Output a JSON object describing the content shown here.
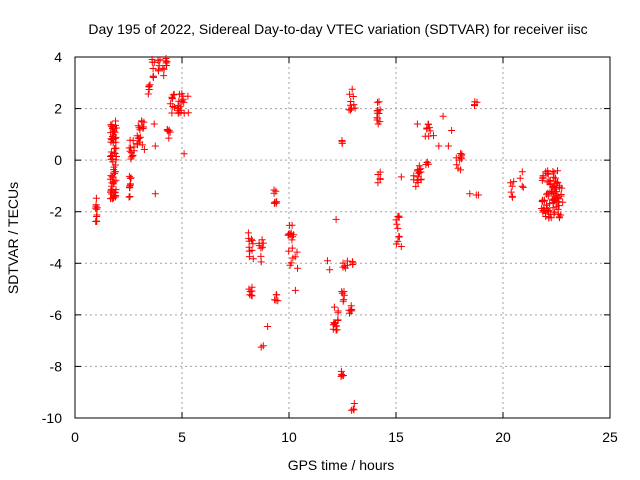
{
  "chart_data": {
    "type": "scatter",
    "title": "Day 195 of 2022, Sidereal Day-to-day VTEC variation (SDTVAR) for receiver iisc",
    "xlabel": "GPS time / hours",
    "ylabel": "SDTVAR / TECUs",
    "xlim": [
      0,
      25
    ],
    "ylim": [
      -10,
      4
    ],
    "xticks": [
      0,
      5,
      10,
      15,
      20,
      25
    ],
    "yticks": [
      -10,
      -8,
      -6,
      -4,
      -2,
      0,
      2,
      4
    ],
    "grid": true,
    "marker": "plus",
    "color": "#ff0000",
    "series": [
      {
        "name": "SDTVAR",
        "clusters": [
          {
            "x": [
              0.95,
              1.05
            ],
            "y": [
              -2.6,
              -1.3
            ],
            "n": 12
          },
          {
            "x": [
              1.65,
              1.95
            ],
            "y": [
              -1.5,
              1.6
            ],
            "n": 70
          },
          {
            "x": [
              2.5,
              2.7
            ],
            "y": [
              -1.5,
              -0.6
            ],
            "n": 10
          },
          {
            "x": [
              2.5,
              2.8
            ],
            "y": [
              0.0,
              0.8
            ],
            "n": 12
          },
          {
            "x": [
              2.9,
              3.25
            ],
            "y": [
              0.3,
              1.6
            ],
            "n": 18
          },
          {
            "x": [
              3.4,
              3.55
            ],
            "y": [
              2.5,
              3.0
            ],
            "n": 5
          },
          {
            "x": [
              3.6,
              4.3
            ],
            "y": [
              3.2,
              4.0
            ],
            "n": 20
          },
          {
            "x": [
              4.3,
              4.5
            ],
            "y": [
              0.8,
              1.2
            ],
            "n": 6
          },
          {
            "x": [
              4.4,
              5.3
            ],
            "y": [
              1.8,
              2.6
            ],
            "n": 28
          },
          {
            "x": [
              8.1,
              8.4
            ],
            "y": [
              -5.3,
              -4.9
            ],
            "n": 8
          },
          {
            "x": [
              8.1,
              8.35
            ],
            "y": [
              -3.9,
              -2.8
            ],
            "n": 12
          },
          {
            "x": [
              8.6,
              8.8
            ],
            "y": [
              -4.0,
              -2.9
            ],
            "n": 8
          },
          {
            "x": [
              9.3,
              9.45
            ],
            "y": [
              -1.7,
              -0.9
            ],
            "n": 8
          },
          {
            "x": [
              9.3,
              9.5
            ],
            "y": [
              -5.5,
              -5.1
            ],
            "n": 5
          },
          {
            "x": [
              9.9,
              10.4
            ],
            "y": [
              -4.2,
              -2.5
            ],
            "n": 18
          },
          {
            "x": [
              12.05,
              12.3
            ],
            "y": [
              -6.6,
              -5.7
            ],
            "n": 14
          },
          {
            "x": [
              12.4,
              12.6
            ],
            "y": [
              -5.6,
              -5.0
            ],
            "n": 6
          },
          {
            "x": [
              12.8,
              12.95
            ],
            "y": [
              -6.0,
              -5.6
            ],
            "n": 6
          },
          {
            "x": [
              12.5,
              13.0
            ],
            "y": [
              -4.2,
              -3.9
            ],
            "n": 8
          },
          {
            "x": [
              12.8,
              13.1
            ],
            "y": [
              1.9,
              2.9
            ],
            "n": 10
          },
          {
            "x": [
              12.35,
              12.5
            ],
            "y": [
              0.6,
              0.9
            ],
            "n": 4
          },
          {
            "x": [
              12.4,
              12.55
            ],
            "y": [
              -8.4,
              -8.0
            ],
            "n": 5
          },
          {
            "x": [
              12.9,
              13.05
            ],
            "y": [
              -9.7,
              -9.4
            ],
            "n": 4
          },
          {
            "x": [
              14.1,
              14.3
            ],
            "y": [
              1.4,
              2.3
            ],
            "n": 12
          },
          {
            "x": [
              14.15,
              14.3
            ],
            "y": [
              -0.9,
              -0.4
            ],
            "n": 5
          },
          {
            "x": [
              15.0,
              15.2
            ],
            "y": [
              -3.4,
              -2.1
            ],
            "n": 10
          },
          {
            "x": [
              15.8,
              16.2
            ],
            "y": [
              -1.1,
              -0.1
            ],
            "n": 16
          },
          {
            "x": [
              16.3,
              16.6
            ],
            "y": [
              0.8,
              1.4
            ],
            "n": 8
          },
          {
            "x": [
              16.35,
              16.55
            ],
            "y": [
              -0.3,
              0.0
            ],
            "n": 4
          },
          {
            "x": [
              17.8,
              18.1
            ],
            "y": [
              -0.6,
              0.3
            ],
            "n": 10
          },
          {
            "x": [
              18.6,
              18.8
            ],
            "y": [
              2.1,
              2.3
            ],
            "n": 5
          },
          {
            "x": [
              20.3,
              20.5
            ],
            "y": [
              -1.5,
              -0.8
            ],
            "n": 6
          },
          {
            "x": [
              20.8,
              20.95
            ],
            "y": [
              -1.2,
              -0.4
            ],
            "n": 4
          },
          {
            "x": [
              21.8,
              22.8
            ],
            "y": [
              -2.3,
              -0.4
            ],
            "n": 90
          }
        ],
        "points": [
          [
            3.75,
            0.55
          ],
          [
            3.7,
            1.4
          ],
          [
            3.75,
            -1.3
          ],
          [
            5.1,
            0.25
          ],
          [
            8.8,
            -7.2
          ],
          [
            8.7,
            -7.25
          ],
          [
            9.0,
            -6.45
          ],
          [
            10.3,
            -5.05
          ],
          [
            11.8,
            -3.9
          ],
          [
            11.9,
            -4.25
          ],
          [
            12.2,
            -2.3
          ],
          [
            12.6,
            -4.1
          ],
          [
            15.25,
            -0.65
          ],
          [
            15.25,
            -3.35
          ],
          [
            16.0,
            1.4
          ],
          [
            16.75,
            0.95
          ],
          [
            17.0,
            0.55
          ],
          [
            17.2,
            1.7
          ],
          [
            17.45,
            0.55
          ],
          [
            17.6,
            1.15
          ],
          [
            18.45,
            -1.3
          ],
          [
            18.75,
            -1.35
          ],
          [
            18.85,
            -1.35
          ]
        ]
      }
    ]
  }
}
